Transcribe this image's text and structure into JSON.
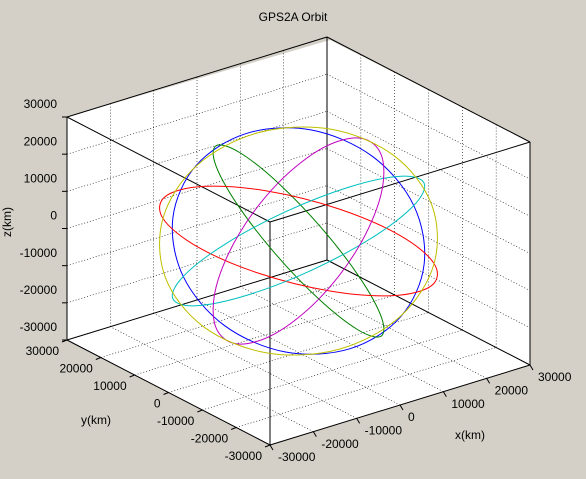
{
  "chart_data": {
    "type": "line3d",
    "title": "GPS2A Orbit",
    "xlabel": "x(km)",
    "ylabel": "y(km)",
    "zlabel": "z(km)",
    "xlim": [
      -30000,
      30000
    ],
    "ylim": [
      -30000,
      30000
    ],
    "zlim": [
      -30000,
      30000
    ],
    "xticks": [
      -30000,
      -20000,
      -10000,
      0,
      10000,
      20000,
      30000
    ],
    "yticks": [
      -30000,
      -20000,
      -10000,
      0,
      10000,
      20000,
      30000
    ],
    "zticks": [
      -30000,
      -20000,
      -10000,
      0,
      10000,
      20000,
      30000
    ],
    "grid": true,
    "series": [
      {
        "color": "#0000ff",
        "x": [
          26600,
          23036,
          13300,
          0,
          -13300,
          -23036,
          -26600,
          -23036,
          -13300,
          0,
          13300,
          23036
        ],
        "y": [
          0,
          7629,
          13214,
          15258,
          13214,
          7629,
          0,
          -7629,
          -13214,
          -15258,
          -13214,
          -7629
        ],
        "z": [
          0,
          10895,
          18871,
          21790,
          18871,
          10895,
          0,
          -10895,
          -18871,
          -21790,
          -18871,
          -10895
        ]
      },
      {
        "color": "#008000",
        "x": [
          13300,
          4911,
          -4793,
          -13213,
          -18093,
          -18125,
          -13300,
          -4911,
          4793,
          13213,
          18093,
          18125
        ],
        "y": [
          23036,
          23764,
          18125,
          7629,
          -4911,
          -16134,
          -23036,
          -23764,
          -18125,
          -7629,
          4911,
          16134
        ],
        "z": [
          0,
          10895,
          18871,
          21790,
          18871,
          10895,
          0,
          -10895,
          -18871,
          -21790,
          -18871,
          -10895
        ]
      },
      {
        "color": "#ff0000",
        "x": [
          -13300,
          -18125,
          -18093,
          -13213,
          -4793,
          4911,
          13300,
          18125,
          18093,
          13213,
          4793,
          -4911
        ],
        "y": [
          23036,
          16134,
          4911,
          -7629,
          -18125,
          -23764,
          -23036,
          -16134,
          -4911,
          7629,
          18125,
          23764
        ],
        "z": [
          0,
          10895,
          18871,
          21790,
          18871,
          10895,
          0,
          -10895,
          -18871,
          -21790,
          -18871,
          -10895
        ]
      },
      {
        "color": "#00bfbf",
        "x": [
          -26600,
          -23036,
          -13300,
          0,
          13300,
          23036,
          26600,
          23036,
          13300,
          0,
          -13300,
          -23036
        ],
        "y": [
          0,
          -7629,
          -13214,
          -15258,
          -13214,
          -7629,
          0,
          7629,
          13214,
          15258,
          13214,
          7629
        ],
        "z": [
          0,
          10895,
          18871,
          21790,
          18871,
          10895,
          0,
          -10895,
          -18871,
          -21790,
          -18871,
          -10895
        ]
      },
      {
        "color": "#bf00bf",
        "x": [
          -13300,
          -4911,
          4793,
          13213,
          18093,
          18125,
          13300,
          4911,
          -4793,
          -13213,
          -18093,
          -18125
        ],
        "y": [
          -23036,
          -23764,
          -18125,
          -7629,
          4911,
          16134,
          23036,
          23764,
          18125,
          7629,
          -4911,
          -16134
        ],
        "z": [
          0,
          10895,
          18871,
          21790,
          18871,
          10895,
          0,
          -10895,
          -18871,
          -21790,
          -18871,
          -10895
        ]
      },
      {
        "color": "#bfbf00",
        "x": [
          13300,
          18125,
          18093,
          13213,
          4793,
          -4911,
          -13300,
          -18125,
          -18093,
          -13213,
          -4793,
          4911
        ],
        "y": [
          -23036,
          -16134,
          -4911,
          7629,
          18125,
          23764,
          23036,
          16134,
          4911,
          -7629,
          -18125,
          -23764
        ],
        "z": [
          0,
          10895,
          18871,
          21790,
          18871,
          10895,
          0,
          -10895,
          -18871,
          -21790,
          -18871,
          -10895
        ]
      }
    ]
  }
}
